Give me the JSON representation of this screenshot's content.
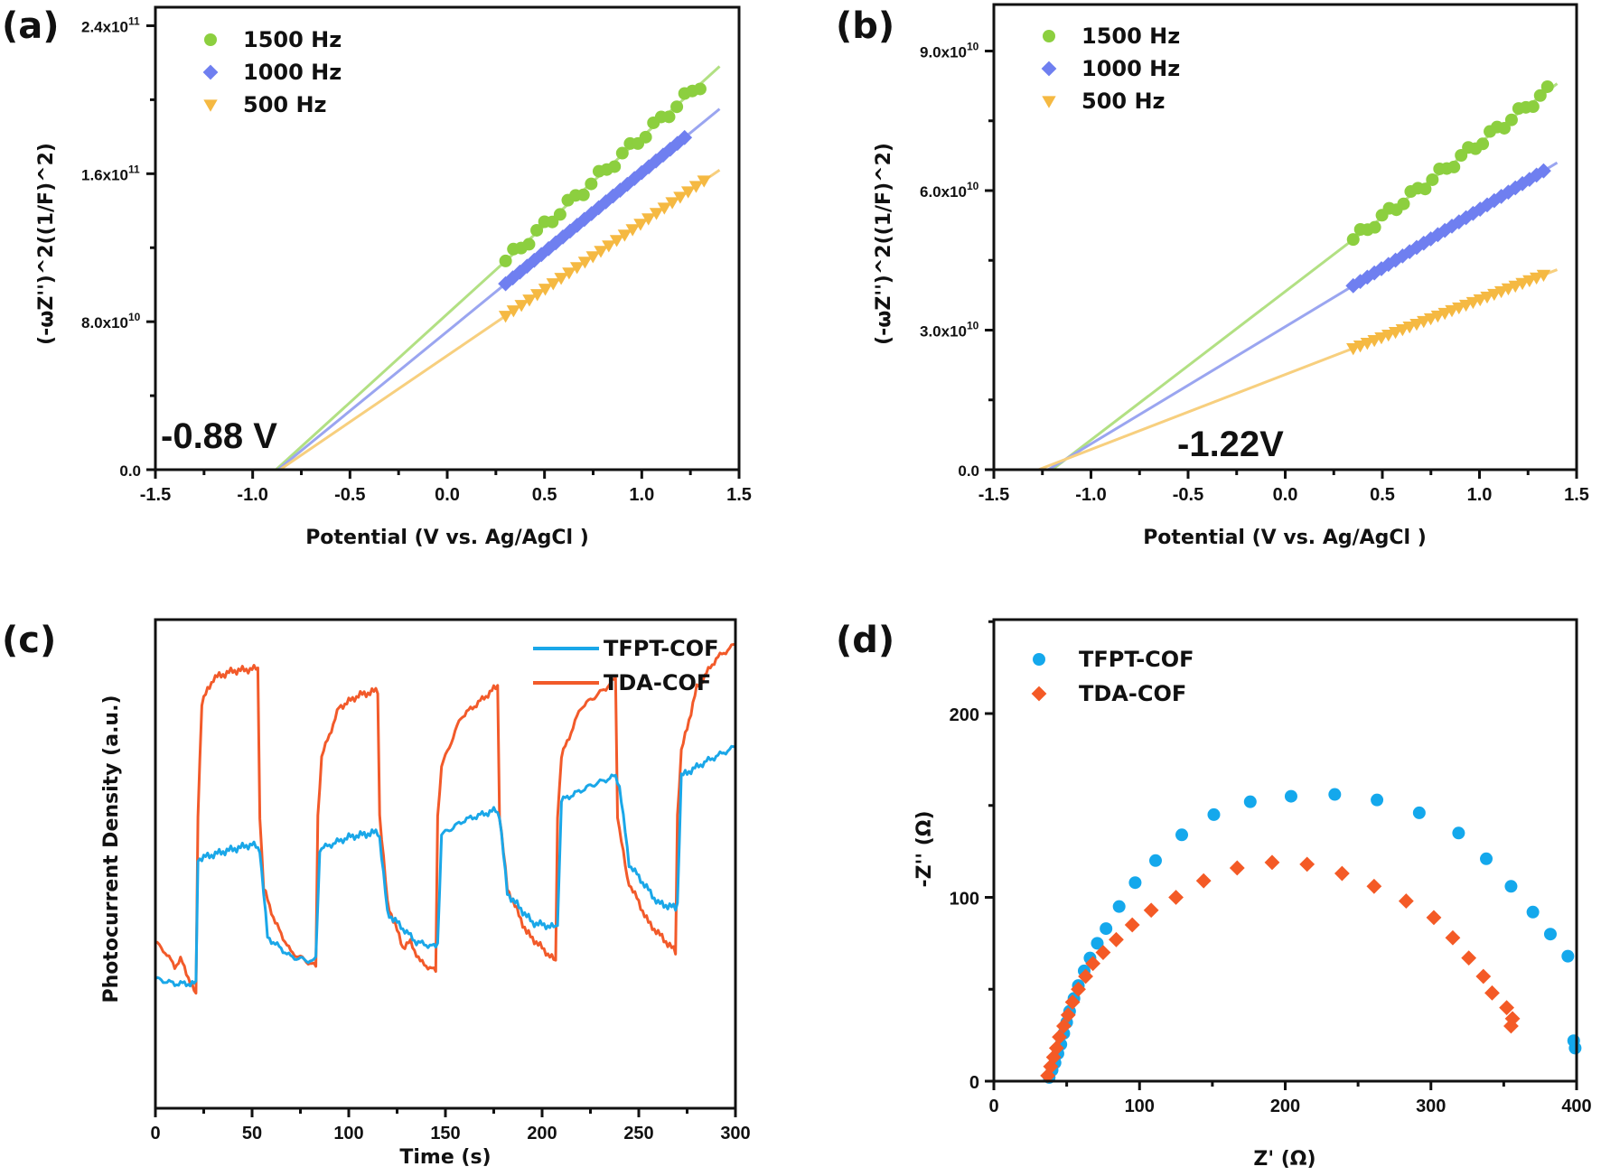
{
  "chart_data": [
    {
      "panel": "(a)",
      "type": "scatter",
      "xlabel": "Potential (V vs. Ag/AgCl )",
      "ylabel": "(-ωZ'')^2((1/F)^2)",
      "xlim": [
        -1.5,
        1.5
      ],
      "ylim": [
        0,
        250000000000.0
      ],
      "xticks": [
        -1.5,
        -1.0,
        -0.5,
        0.0,
        0.5,
        1.0,
        1.5
      ],
      "xtick_labels": [
        "-1.5",
        "-1.0",
        "-0.5",
        "0.0",
        "0.5",
        "1.0",
        "1.5"
      ],
      "yticks": [
        0,
        80000000000.0,
        160000000000.0,
        240000000000.0
      ],
      "ytick_labels": [
        "0.0",
        "8.0x10",
        "1.6x10",
        "2.4x10"
      ],
      "ytick_exponents": [
        "",
        "10",
        "11",
        "11"
      ],
      "annotation": "-0.88 V",
      "legend_position": "top-left",
      "series": [
        {
          "name": "1500 Hz",
          "marker": "circle",
          "color": "#8ccf3f",
          "fit_color": "#b2e083",
          "x_intercept": -0.88,
          "fit_end": [
            1.4,
            218000000000.0
          ],
          "x_start": 0.3,
          "x_end": 1.3,
          "n_points": 26
        },
        {
          "name": "1000 Hz",
          "marker": "diamond",
          "color": "#6f7ff0",
          "fit_color": "#9aa5f0",
          "x_intercept": -0.87,
          "fit_end": [
            1.4,
            195000000000.0
          ],
          "x_start": 0.3,
          "x_end": 1.22,
          "n_points": 26
        },
        {
          "name": "500 Hz",
          "marker": "triangle-down",
          "color": "#f5b942",
          "fit_color": "#f7cf7e",
          "x_intercept": -0.86,
          "fit_end": [
            1.4,
            162000000000.0
          ],
          "x_start": 0.3,
          "x_end": 1.32,
          "n_points": 26
        }
      ]
    },
    {
      "panel": "(b)",
      "type": "scatter",
      "xlabel": "Potential (V vs. Ag/AgCl )",
      "ylabel": "(-ωZ'')^2((1/F)^2)",
      "xlim": [
        -1.5,
        1.5
      ],
      "ylim": [
        0,
        100000000000.0
      ],
      "xticks": [
        -1.5,
        -1.0,
        -0.5,
        0.0,
        0.5,
        1.0,
        1.5
      ],
      "xtick_labels": [
        "-1.5",
        "-1.0",
        "-0.5",
        "0.0",
        "0.5",
        "1.0",
        "1.5"
      ],
      "yticks": [
        0,
        30000000000.0,
        60000000000.0,
        90000000000.0
      ],
      "ytick_labels": [
        "0.0",
        "3.0x10",
        "6.0x10",
        "9.0x10"
      ],
      "ytick_exponents": [
        "",
        "10",
        "10",
        "10"
      ],
      "annotation": "-1.22V",
      "legend_position": "top-left",
      "series": [
        {
          "name": "1500 Hz",
          "marker": "circle",
          "color": "#8ccf3f",
          "fit_color": "#b2e083",
          "x_intercept": -1.2,
          "fit_end": [
            1.4,
            83000000000.0
          ],
          "x_start": 0.35,
          "x_end": 1.35,
          "n_points": 28
        },
        {
          "name": "1000 Hz",
          "marker": "diamond",
          "color": "#6f7ff0",
          "fit_color": "#9aa5f0",
          "x_intercept": -1.22,
          "fit_end": [
            1.4,
            66000000000.0
          ],
          "x_start": 0.35,
          "x_end": 1.33,
          "n_points": 28
        },
        {
          "name": "500 Hz",
          "marker": "triangle-down",
          "color": "#f5b942",
          "fit_color": "#f7cf7e",
          "x_intercept": -1.27,
          "fit_end": [
            1.4,
            43000000000.0
          ],
          "x_start": 0.35,
          "x_end": 1.33,
          "n_points": 28
        }
      ]
    },
    {
      "panel": "(c)",
      "type": "line",
      "xlabel": "Time (s)",
      "ylabel": "Photocurrent Density (a.u.)",
      "xlim": [
        0,
        300
      ],
      "ylim": [
        0,
        1
      ],
      "xticks": [
        0,
        50,
        100,
        150,
        200,
        250,
        300
      ],
      "xtick_labels": [
        "0",
        "50",
        "100",
        "150",
        "200",
        "250",
        "300"
      ],
      "legend_position": "top-right",
      "series": [
        {
          "name": "TFPT-COF",
          "color": "#1aa7e8",
          "x": [
            0,
            10,
            21,
            22,
            35,
            50,
            54,
            58,
            70,
            82,
            83,
            85,
            100,
            115,
            116,
            120,
            135,
            145,
            146,
            148,
            160,
            176,
            178,
            182,
            195,
            207,
            208,
            210,
            225,
            238,
            240,
            245,
            260,
            269,
            270,
            272,
            285,
            300
          ],
          "y": [
            0.265,
            0.255,
            0.255,
            0.51,
            0.525,
            0.54,
            0.53,
            0.35,
            0.31,
            0.3,
            0.31,
            0.53,
            0.555,
            0.565,
            0.555,
            0.4,
            0.34,
            0.33,
            0.34,
            0.56,
            0.59,
            0.61,
            0.6,
            0.44,
            0.38,
            0.37,
            0.38,
            0.63,
            0.66,
            0.68,
            0.66,
            0.5,
            0.42,
            0.41,
            0.42,
            0.68,
            0.71,
            0.74
          ]
        },
        {
          "name": "TDA-COF",
          "color": "#f25a2a",
          "x": [
            0,
            5,
            10,
            13,
            18,
            21,
            22,
            24,
            30,
            40,
            53,
            54,
            56,
            62,
            70,
            83,
            84,
            86,
            95,
            105,
            115,
            116,
            120,
            128,
            132,
            137,
            145,
            146,
            148,
            158,
            170,
            177,
            178,
            182,
            192,
            207,
            208,
            210,
            220,
            233,
            238,
            239,
            244,
            255,
            269,
            270,
            272,
            280,
            290,
            300
          ],
          "y": [
            0.34,
            0.32,
            0.29,
            0.305,
            0.26,
            0.23,
            0.6,
            0.83,
            0.88,
            0.895,
            0.9,
            0.6,
            0.45,
            0.38,
            0.32,
            0.29,
            0.6,
            0.72,
            0.82,
            0.845,
            0.855,
            0.6,
            0.42,
            0.33,
            0.34,
            0.3,
            0.28,
            0.6,
            0.7,
            0.8,
            0.84,
            0.865,
            0.6,
            0.45,
            0.36,
            0.3,
            0.6,
            0.72,
            0.82,
            0.86,
            0.88,
            0.6,
            0.47,
            0.38,
            0.32,
            0.6,
            0.73,
            0.86,
            0.92,
            0.95
          ]
        }
      ]
    },
    {
      "panel": "(d)",
      "type": "scatter",
      "xlabel": "Z' (Ω)",
      "ylabel": "-Z'' (Ω)",
      "xlim": [
        0,
        400
      ],
      "ylim": [
        0,
        250
      ],
      "xticks": [
        0,
        100,
        200,
        300,
        400
      ],
      "xtick_labels": [
        "0",
        "100",
        "200",
        "300",
        "400"
      ],
      "yticks": [
        0,
        100,
        200
      ],
      "ytick_labels": [
        "0",
        "100",
        "200"
      ],
      "legend_position": "top-left",
      "series": [
        {
          "name": "TFPT-COF",
          "marker": "circle",
          "color": "#14a8ec",
          "x": [
            38,
            40,
            42,
            44,
            46,
            48,
            50,
            52,
            55,
            58,
            62,
            66,
            71,
            77,
            86,
            97,
            111,
            129,
            151,
            176,
            204,
            234,
            263,
            292,
            319,
            338,
            355,
            370,
            382,
            394,
            398,
            399
          ],
          "y": [
            2,
            6,
            10,
            15,
            20,
            26,
            32,
            38,
            45,
            52,
            60,
            67,
            75,
            83,
            95,
            108,
            120,
            134,
            145,
            152,
            155,
            156,
            153,
            146,
            135,
            121,
            106,
            92,
            80,
            68,
            22,
            18
          ]
        },
        {
          "name": "TDA-COF",
          "marker": "diamond",
          "color": "#f45a26",
          "x": [
            37,
            39,
            41,
            43,
            45,
            48,
            51,
            54,
            58,
            63,
            68,
            75,
            84,
            95,
            108,
            125,
            144,
            167,
            191,
            215,
            239,
            261,
            283,
            302,
            315,
            326,
            336,
            342,
            352,
            356,
            355
          ],
          "y": [
            3,
            8,
            13,
            18,
            24,
            30,
            36,
            43,
            50,
            57,
            64,
            70,
            77,
            85,
            93,
            100,
            109,
            116,
            119,
            118,
            113,
            106,
            98,
            89,
            78,
            67,
            57,
            48,
            40,
            34,
            30
          ]
        }
      ]
    }
  ]
}
